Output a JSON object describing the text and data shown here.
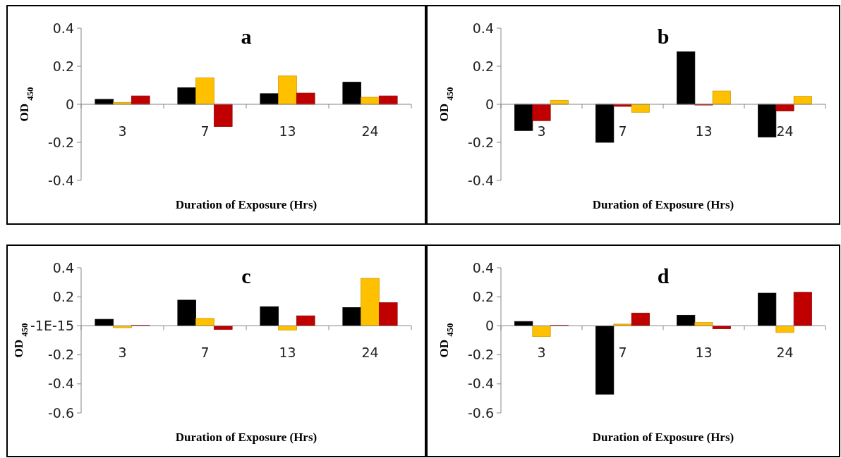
{
  "chart_data": [
    {
      "type": "bar",
      "title": "a",
      "xlabel": "Duration of Exposure (Hrs)",
      "ylabel": "OD $_{450}$",
      "categories": [
        "3",
        "7",
        "13",
        "24"
      ],
      "ylim": [
        -0.4,
        0.4
      ],
      "yticks": [
        -0.4,
        -0.2,
        0,
        0.2,
        0.4
      ],
      "grid": false,
      "series": [
        {
          "color": "#000000",
          "values": [
            0.026,
            0.087,
            0.056,
            0.116
          ]
        },
        {
          "color": "#ffc000",
          "values": [
            0.01,
            0.139,
            0.149,
            0.037
          ]
        },
        {
          "color": "#c00000",
          "values": [
            0.044,
            -0.117,
            0.059,
            0.044
          ]
        }
      ]
    },
    {
      "type": "bar",
      "title": "b",
      "xlabel": "Duration of Exposure (Hrs)",
      "ylabel": "OD $_{450}$",
      "categories": [
        "3",
        "7",
        "13",
        "24"
      ],
      "ylim": [
        -0.4,
        0.4
      ],
      "yticks": [
        -0.4,
        -0.2,
        0,
        0.2,
        0.4
      ],
      "grid": false,
      "series": [
        {
          "color": "#000000",
          "values": [
            -0.138,
            -0.2,
            0.276,
            -0.172
          ]
        },
        {
          "color": "#c00000",
          "values": [
            -0.086,
            -0.011,
            -0.004,
            -0.035
          ]
        },
        {
          "color": "#ffc000",
          "values": [
            0.021,
            -0.042,
            0.07,
            0.042
          ]
        }
      ]
    },
    {
      "type": "bar",
      "title": "c",
      "xlabel": "Duration of Exposure (Hrs)",
      "ylabel": "OD $_{450}$",
      "categories": [
        "3",
        "7",
        "13",
        "24"
      ],
      "ylim": [
        -0.6,
        0.4
      ],
      "yticks": [
        -0.6,
        -0.4,
        -0.2,
        {
          "value": 0,
          "label": "-1E-15"
        },
        0.2,
        0.4
      ],
      "grid": false,
      "series": [
        {
          "color": "#000000",
          "values": [
            0.045,
            0.177,
            0.132,
            0.126
          ]
        },
        {
          "color": "#ffc000",
          "values": [
            -0.013,
            0.051,
            -0.03,
            0.327
          ]
        },
        {
          "color": "#c00000",
          "values": [
            0.003,
            -0.025,
            0.069,
            0.16
          ]
        }
      ]
    },
    {
      "type": "bar",
      "title": "d",
      "xlabel": "Duration of Exposure (Hrs)",
      "ylabel": "OD $_{450}$",
      "categories": [
        "3",
        "7",
        "13",
        "24"
      ],
      "ylim": [
        -0.6,
        0.4
      ],
      "yticks": [
        -0.6,
        -0.4,
        -0.2,
        0,
        0.2,
        0.4
      ],
      "grid": false,
      "series": [
        {
          "color": "#000000",
          "values": [
            0.03,
            -0.471,
            0.073,
            0.225
          ]
        },
        {
          "color": "#ffc000",
          "values": [
            -0.074,
            0.012,
            0.023,
            -0.046
          ]
        },
        {
          "color": "#c00000",
          "values": [
            0.003,
            0.088,
            -0.02,
            0.231
          ]
        }
      ]
    }
  ]
}
